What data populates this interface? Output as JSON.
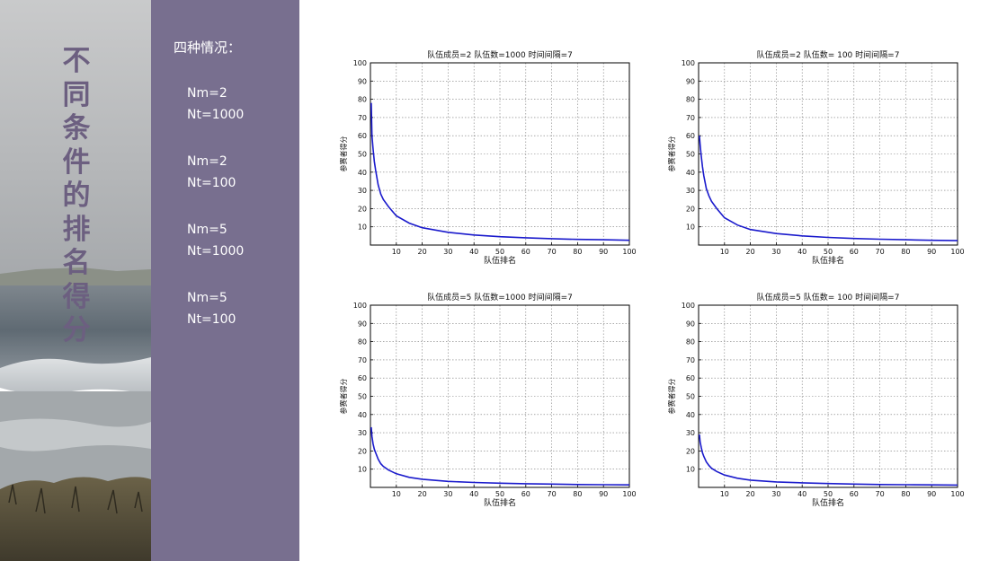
{
  "slide": {
    "vertical_title": [
      "不",
      "同",
      "条",
      "件",
      "的",
      "排",
      "名",
      "得",
      "分"
    ]
  },
  "panel": {
    "heading": "四种情况：",
    "cases": [
      {
        "line1": "Nm=2",
        "line2": "Nt=1000"
      },
      {
        "line1": "Nm=2",
        "line2": "Nt=100"
      },
      {
        "line1": "Nm=5",
        "line2": "Nt=1000"
      },
      {
        "line1": "Nm=5",
        "line2": "Nt=100"
      }
    ]
  },
  "colors": {
    "panel_bg": "#786f8f",
    "title_color": "#6c5f80",
    "curve": "#1a1acc"
  },
  "chart_data": [
    {
      "type": "line",
      "title": "队伍成员=2 队伍数=1000 时间间隔=7",
      "xlabel": "队伍排名",
      "ylabel": "参赛者得分",
      "xlim": [
        0,
        100
      ],
      "ylim": [
        0,
        100
      ],
      "xticks": [
        10,
        20,
        30,
        40,
        50,
        60,
        70,
        80,
        90,
        100
      ],
      "yticks": [
        10,
        20,
        30,
        40,
        50,
        60,
        70,
        80,
        90,
        100
      ],
      "grid": true,
      "series": [
        {
          "x": [
            0.3,
            0.6,
            1,
            1.5,
            2,
            3,
            4,
            5,
            7,
            10,
            15,
            20,
            30,
            40,
            50,
            60,
            70,
            80,
            90,
            100
          ],
          "values": [
            78,
            60,
            53,
            46,
            41,
            33,
            28,
            25,
            21,
            16,
            12,
            9.5,
            7,
            5.5,
            4.6,
            4,
            3.5,
            3.1,
            2.9,
            2.6
          ]
        }
      ]
    },
    {
      "type": "line",
      "title": "队伍成员=2 队伍数= 100 时间间隔=7",
      "xlabel": "队伍排名",
      "ylabel": "参赛者得分",
      "xlim": [
        0,
        100
      ],
      "ylim": [
        0,
        100
      ],
      "xticks": [
        10,
        20,
        30,
        40,
        50,
        60,
        70,
        80,
        90,
        100
      ],
      "yticks": [
        10,
        20,
        30,
        40,
        50,
        60,
        70,
        80,
        90,
        100
      ],
      "grid": true,
      "series": [
        {
          "x": [
            0.3,
            0.6,
            1,
            1.5,
            2,
            3,
            4,
            5,
            7,
            10,
            15,
            20,
            30,
            40,
            50,
            60,
            70,
            80,
            90,
            100
          ],
          "values": [
            60,
            55,
            49,
            43,
            38,
            31,
            27,
            24,
            20,
            15,
            11,
            8.5,
            6.3,
            5,
            4.2,
            3.6,
            3.2,
            2.9,
            2.6,
            2.4
          ]
        }
      ]
    },
    {
      "type": "line",
      "title": "队伍成员=5 队伍数=1000 时间间隔=7",
      "xlabel": "队伍排名",
      "ylabel": "参赛者得分",
      "xlim": [
        0,
        100
      ],
      "ylim": [
        0,
        100
      ],
      "xticks": [
        10,
        20,
        30,
        40,
        50,
        60,
        70,
        80,
        90,
        100
      ],
      "yticks": [
        10,
        20,
        30,
        40,
        50,
        60,
        70,
        80,
        90,
        100
      ],
      "grid": true,
      "series": [
        {
          "x": [
            0.3,
            0.6,
            1,
            1.5,
            2,
            3,
            4,
            5,
            7,
            10,
            15,
            20,
            30,
            40,
            50,
            60,
            70,
            80,
            90,
            100
          ],
          "values": [
            33,
            28,
            24,
            21,
            19,
            15.5,
            13,
            11.5,
            9.5,
            7.5,
            5.5,
            4.5,
            3.3,
            2.7,
            2.3,
            2,
            1.8,
            1.6,
            1.5,
            1.4
          ]
        }
      ]
    },
    {
      "type": "line",
      "title": "队伍成员=5 队伍数= 100 时间间隔=7",
      "xlabel": "队伍排名",
      "ylabel": "参赛者得分",
      "xlim": [
        0,
        100
      ],
      "ylim": [
        0,
        100
      ],
      "xticks": [
        10,
        20,
        30,
        40,
        50,
        60,
        70,
        80,
        90,
        100
      ],
      "yticks": [
        10,
        20,
        30,
        40,
        50,
        60,
        70,
        80,
        90,
        100
      ],
      "grid": true,
      "series": [
        {
          "x": [
            0.3,
            0.6,
            1,
            1.5,
            2,
            3,
            4,
            5,
            7,
            10,
            15,
            20,
            30,
            40,
            50,
            60,
            70,
            80,
            90,
            100
          ],
          "values": [
            29,
            25,
            22,
            19,
            17,
            14,
            12,
            10.5,
            8.7,
            6.8,
            5,
            4,
            3,
            2.5,
            2.1,
            1.8,
            1.6,
            1.5,
            1.4,
            1.3
          ]
        }
      ]
    }
  ]
}
